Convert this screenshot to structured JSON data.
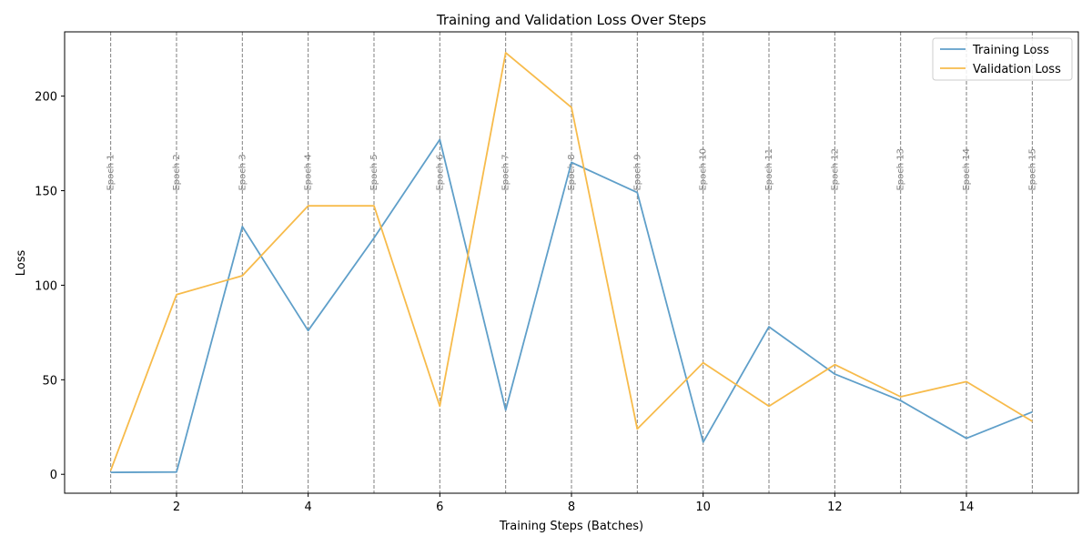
{
  "chart_data": {
    "type": "line",
    "title": "Training and Validation Loss Over Steps",
    "xlabel": "Training Steps (Batches)",
    "ylabel": "Loss",
    "xlim": [
      0.3,
      15.7
    ],
    "ylim": [
      -10,
      234
    ],
    "xticks": [
      2,
      4,
      6,
      8,
      10,
      12,
      14
    ],
    "yticks": [
      0,
      50,
      100,
      150,
      200
    ],
    "grid": false,
    "legend_position": "top-right",
    "x": [
      1,
      2,
      3,
      4,
      5,
      6,
      7,
      8,
      9,
      10,
      11,
      12,
      13,
      14,
      15
    ],
    "series": [
      {
        "name": "Training Loss",
        "color": "#5f9fc9",
        "values": [
          1,
          1.2,
          131,
          76,
          125,
          177,
          34,
          165,
          149,
          17,
          78,
          53,
          39,
          19,
          33
        ]
      },
      {
        "name": "Validation Loss",
        "color": "#f7bb4b",
        "values": [
          2,
          95,
          105,
          142,
          142,
          36,
          223,
          194,
          24,
          59,
          36,
          58,
          41,
          49,
          28
        ]
      }
    ],
    "annotations": {
      "epoch_lines": [
        1,
        2,
        3,
        4,
        5,
        6,
        7,
        8,
        9,
        10,
        11,
        12,
        13,
        14,
        15
      ],
      "epoch_labels": [
        "Epoch 1",
        "Epoch 2",
        "Epoch 3",
        "Epoch 4",
        "Epoch 5",
        "Epoch 6",
        "Epoch 7",
        "Epoch 8",
        "Epoch 9",
        "Epoch 10",
        "Epoch 11",
        "Epoch 12",
        "Epoch 13",
        "Epoch 14",
        "Epoch 15"
      ],
      "epoch_label_y": 150,
      "line_color": "#808080"
    }
  }
}
